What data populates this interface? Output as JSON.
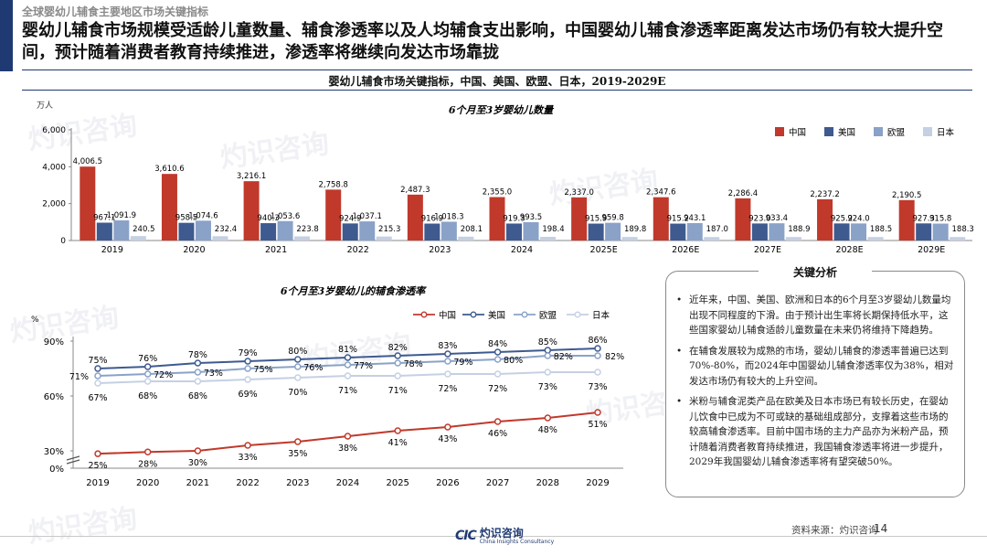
{
  "header": {
    "breadcrumb": "全球婴幼儿辅食主要地区市场关键指标",
    "headline": "婴幼儿辅食市场规模受适龄儿童数量、辅食渗透率以及人均辅食支出影响，中国婴幼儿辅食渗透率距离发达市场仍有较大提升空间，预计随着消费者教育持续推进，渗透率将继续向发达市场靠拢",
    "subtitle": "婴幼儿辅食市场关键指标，中国、美国、欧盟、日本，2019-2029E"
  },
  "colors": {
    "accent": "#1f3a73",
    "china": "#c0392b",
    "usa": "#3e5a8f",
    "eu": "#8aa2c8",
    "japan": "#c5d0e3"
  },
  "chart_data": [
    {
      "type": "bar",
      "title": "6个月至3岁婴幼儿数量",
      "ylabel": "万人",
      "ylim": [
        0,
        6000
      ],
      "yticks": [
        "0",
        "2,000",
        "4,000",
        "6,000"
      ],
      "legend_position": "top-right",
      "grid": false,
      "categories": [
        "2019",
        "2020",
        "2021",
        "2022",
        "2023",
        "2024",
        "2025E",
        "2026E",
        "2027E",
        "2028E",
        "2029E"
      ],
      "series": [
        {
          "name": "中国",
          "color": "#c0392b",
          "values": [
            4006.5,
            3610.6,
            3216.1,
            2758.8,
            2487.3,
            2355.0,
            2337.0,
            2347.6,
            2286.4,
            2237.2,
            2190.5
          ],
          "labels": [
            "4,006.5",
            "3,610.6",
            "3,216.1",
            "2,758.8",
            "2,487.3",
            "2,355.0",
            "2,337.0",
            "2,347.6",
            "2,286.4",
            "2,237.2",
            "2,190.5"
          ]
        },
        {
          "name": "美国",
          "color": "#3e5a8f",
          "values": [
            967.1,
            958.5,
            940.3,
            924.9,
            916.9,
            919.3,
            915.9,
            915.2,
            923.0,
            925.2,
            927.3
          ],
          "labels": [
            "967.1",
            "958.5",
            "940.3",
            "924.9",
            "916.9",
            "919.3",
            "915.9",
            "915.2",
            "923.0",
            "925.2",
            "927.3"
          ]
        },
        {
          "name": "欧盟",
          "color": "#8aa2c8",
          "values": [
            1091.9,
            1074.6,
            1053.6,
            1037.1,
            1018.3,
            993.5,
            959.8,
            943.1,
            933.4,
            924.0,
            915.8
          ],
          "labels": [
            "1,091.9",
            "1,074.6",
            "1,053.6",
            "1,037.1",
            "1,018.3",
            "993.5",
            "959.8",
            "943.1",
            "933.4",
            "924.0",
            "915.8"
          ]
        },
        {
          "name": "日本",
          "color": "#c5d0e3",
          "values": [
            240.5,
            232.4,
            223.8,
            215.3,
            208.1,
            198.4,
            189.8,
            187.0,
            188.9,
            188.5,
            188.3
          ],
          "labels": [
            "240.5",
            "232.4",
            "223.8",
            "215.3",
            "208.1",
            "198.4",
            "189.8",
            "187.0",
            "188.9",
            "188.5",
            "188.3"
          ]
        }
      ]
    },
    {
      "type": "line",
      "title": "6个月至3岁婴幼儿的辅食渗透率",
      "ylabel": "%",
      "ylim": [
        0,
        90
      ],
      "axis_break": [
        0,
        30
      ],
      "yticks": [
        "0%",
        "30%",
        "60%",
        "90%"
      ],
      "legend_position": "top-right",
      "grid": false,
      "x": [
        "2019",
        "2020",
        "2021",
        "2022",
        "2023",
        "2024",
        "2025",
        "2026",
        "2027",
        "2028",
        "2029"
      ],
      "series": [
        {
          "name": "中国",
          "color": "#c0392b",
          "values": [
            25,
            28,
            30,
            33,
            35,
            38,
            41,
            43,
            46,
            48,
            51
          ],
          "labels": [
            "25%",
            "28%",
            "30%",
            "33%",
            "35%",
            "38%",
            "41%",
            "43%",
            "46%",
            "48%",
            "51%"
          ]
        },
        {
          "name": "美国",
          "color": "#3e5a8f",
          "values": [
            75,
            76,
            78,
            79,
            80,
            81,
            82,
            83,
            84,
            85,
            86
          ],
          "labels": [
            "75%",
            "76%",
            "78%",
            "79%",
            "80%",
            "81%",
            "82%",
            "83%",
            "84%",
            "85%",
            "86%"
          ]
        },
        {
          "name": "欧盟",
          "color": "#8aa2c8",
          "values": [
            71,
            72,
            73,
            75,
            76,
            77,
            78,
            79,
            80,
            82,
            82
          ],
          "labels": [
            "71%",
            "72%",
            "73%",
            "75%",
            "76%",
            "77%",
            "78%",
            "79%",
            "80%",
            "82%",
            "82%"
          ]
        },
        {
          "name": "日本",
          "color": "#c5d0e3",
          "values": [
            67,
            68,
            68,
            69,
            70,
            71,
            71,
            72,
            72,
            73,
            73
          ],
          "labels": [
            "67%",
            "68%",
            "68%",
            "69%",
            "70%",
            "71%",
            "71%",
            "72%",
            "72%",
            "73%",
            "73%"
          ]
        }
      ]
    }
  ],
  "analysis": {
    "title": "关键分析",
    "points": [
      "近年来，中国、美国、欧洲和日本的6个月至3岁婴幼儿数量均出现不同程度的下滑。由于预计出生率将长期保持低水平，这些国家婴幼儿辅食适龄儿童数量在未来仍将维持下降趋势。",
      "在辅食发展较为成熟的市场，婴幼儿辅食的渗透率普遍已达到70%-80%，而2024年中国婴幼儿辅食渗透率仅为38%，相对发达市场仍有较大的上升空间。",
      "米粉与辅食泥类产品在欧美及日本市场已有较长历史，在婴幼儿饮食中已成为不可或缺的基础组成部分，支撑着这些市场的较高辅食渗透率。目前中国市场的主力产品亦为米粉产品，预计随着消费者教育持续推进，我国辅食渗透率将进一步提升，2029年我国婴幼儿辅食渗透率将有望突破50%。"
    ]
  },
  "footer": {
    "logo_mark": "CIC",
    "logo_cn": "灼识咨询",
    "logo_en": "China Insights Consultancy",
    "source": "资料来源：灼识咨询",
    "page_number": "14"
  },
  "watermark": {
    "cn": "灼识咨询",
    "mark": "CIC",
    "en": "China Insights Consultancy"
  }
}
